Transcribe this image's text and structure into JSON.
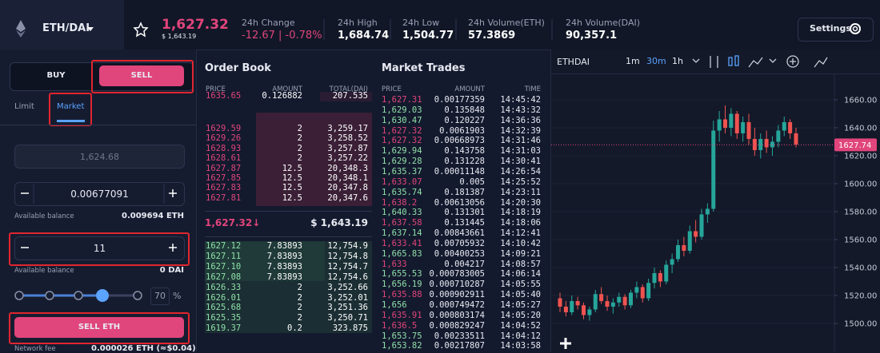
{
  "header": {
    "pair": "ETH/DAI",
    "price": "1,627.32",
    "price_usd": "$ 1,643.19",
    "stats": [
      {
        "label": "24h Change",
        "value": "-12.67 | -0.78%"
      },
      {
        "label": "24h High",
        "value": "1,684.74"
      },
      {
        "label": "24h Low",
        "value": "1,504.77"
      },
      {
        "label": "24h Volume(ETH)",
        "value": "57.3869"
      },
      {
        "label": "24h Volume(DAI)",
        "value": "90,357.1"
      }
    ],
    "settings": "Settings"
  },
  "trade_form": {
    "tabs": [
      "BUY",
      "SELL"
    ],
    "order_types": [
      "Limit",
      "Market"
    ],
    "price_placeholder": "1,624.68",
    "amount": "0.00677091",
    "balance_label_1": "Available balance",
    "balance_1": "0.009694 ETH",
    "total": "11",
    "balance_label_2": "Available balance",
    "balance_2": "0 DAI",
    "percent": "70",
    "percent_unit": "%",
    "submit": "SELL ETH",
    "fee_label": "Network fee",
    "fee": "0.000026 ETH (≈$0.04)"
  },
  "order_book": {
    "title": "Order Book",
    "columns": [
      "PRICE",
      "AMOUNT",
      "TOTAL(DAI)"
    ],
    "asks": [
      [
        "1635.65",
        "0.126882",
        "207.535"
      ],
      [
        "1629.59",
        "2",
        "3,259.17"
      ],
      [
        "1629.26",
        "2",
        "3,258.52"
      ],
      [
        "1628.93",
        "2",
        "3,257.87"
      ],
      [
        "1628.61",
        "2",
        "3,257.22"
      ],
      [
        "1627.87",
        "12.5",
        "20,348.3"
      ],
      [
        "1627.85",
        "12.5",
        "20,348.1"
      ],
      [
        "1627.83",
        "12.5",
        "20,347.8"
      ],
      [
        "1627.81",
        "12.5",
        "20,347.6"
      ]
    ],
    "mid_price": "1,627.32↓",
    "mid_usd": "$ 1,643.19",
    "bids": [
      [
        "1627.12",
        "7.83893",
        "12,754.9"
      ],
      [
        "1627.11",
        "7.83893",
        "12,754.8"
      ],
      [
        "1627.10",
        "7.83893",
        "12,754.7"
      ],
      [
        "1627.08",
        "7.83893",
        "12,754.6"
      ],
      [
        "1626.33",
        "2",
        "3,252.66"
      ],
      [
        "1626.01",
        "2",
        "3,252.01"
      ],
      [
        "1625.68",
        "2",
        "3,251.36"
      ],
      [
        "1625.35",
        "2",
        "3,250.71"
      ],
      [
        "1619.37",
        "0.2",
        "323.875"
      ]
    ]
  },
  "market_trades": {
    "title": "Market Trades",
    "columns": [
      "PRICE",
      "AMOUNT",
      "TIME"
    ],
    "rows": [
      {
        "price": "1,627.31",
        "amount": "0.00177359",
        "time": "14:45:42",
        "color": "#e0457b"
      },
      {
        "price": "1,629.03",
        "amount": "0.135848",
        "time": "14:43:32",
        "color": "#8fe0a8"
      },
      {
        "price": "1,630.47",
        "amount": "0.120227",
        "time": "14:36:36",
        "color": "#8fe0a8"
      },
      {
        "price": "1,627.32",
        "amount": "0.0061903",
        "time": "14:32:39",
        "color": "#e0457b"
      },
      {
        "price": "1,627.32",
        "amount": "0.00668973",
        "time": "14:31:46",
        "color": "#e0457b"
      },
      {
        "price": "1,629.94",
        "amount": "0.143758",
        "time": "14:31:03",
        "color": "#8fe0a8"
      },
      {
        "price": "1,629.28",
        "amount": "0.131228",
        "time": "14:30:41",
        "color": "#8fe0a8"
      },
      {
        "price": "1,635.37",
        "amount": "0.00011148",
        "time": "14:26:54",
        "color": "#8fe0a8"
      },
      {
        "price": "1,633.07",
        "amount": "0.005",
        "time": "14:25:52",
        "color": "#e0457b"
      },
      {
        "price": "1,635.74",
        "amount": "0.181387",
        "time": "14:23:11",
        "color": "#8fe0a8"
      },
      {
        "price": "1,638.2",
        "amount": "0.00613056",
        "time": "14:20:30",
        "color": "#e0457b"
      },
      {
        "price": "1,640.33",
        "amount": "0.131301",
        "time": "14:18:19",
        "color": "#8fe0a8"
      },
      {
        "price": "1,637.58",
        "amount": "0.131445",
        "time": "14:18:06",
        "color": "#e0457b"
      },
      {
        "price": "1,637.14",
        "amount": "0.00843661",
        "time": "14:12:41",
        "color": "#8fe0a8"
      },
      {
        "price": "1,633.41",
        "amount": "0.00705932",
        "time": "14:10:42",
        "color": "#e0457b"
      },
      {
        "price": "1,665.83",
        "amount": "0.00400253",
        "time": "14:09:21",
        "color": "#8fe0a8"
      },
      {
        "price": "1,633",
        "amount": "0.004217",
        "time": "14:08:57",
        "color": "#e0457b"
      },
      {
        "price": "1,655.53",
        "amount": "0.000783005",
        "time": "14:06:14",
        "color": "#8fe0a8"
      },
      {
        "price": "1,656.19",
        "amount": "0.000710287",
        "time": "14:05:55",
        "color": "#8fe0a8"
      },
      {
        "price": "1,635.88",
        "amount": "0.000902911",
        "time": "14:05:40",
        "color": "#e0457b"
      },
      {
        "price": "1,656",
        "amount": "0.000749472",
        "time": "14:05:27",
        "color": "#8fe0a8"
      },
      {
        "price": "1,635.91",
        "amount": "0.000803174",
        "time": "14:05:20",
        "color": "#e0457b"
      },
      {
        "price": "1,636.5",
        "amount": "0.000829247",
        "time": "14:04:52",
        "color": "#e0457b"
      },
      {
        "price": "1,653.75",
        "amount": "0.00233511",
        "time": "14:04:12",
        "color": "#8fe0a8"
      },
      {
        "price": "1,653.82",
        "amount": "0.00217807",
        "time": "14:03:58",
        "color": "#8fe0a8"
      }
    ]
  },
  "chart_data": {
    "type": "candlestick",
    "title": "ETHDAI",
    "intervals": [
      "1m",
      "30m",
      "1h"
    ],
    "open": [
      1518,
      1512,
      1508,
      1516,
      1513,
      1506,
      1510,
      1521,
      1516,
      1512,
      1515,
      1519,
      1513,
      1522,
      1526,
      1518,
      1529,
      1536,
      1530,
      1542,
      1546,
      1556,
      1552,
      1566,
      1562,
      1578,
      1582,
      1638,
      1646,
      1640,
      1650,
      1636,
      1644,
      1632,
      1624,
      1632,
      1626,
      1630,
      1638,
      1644,
      1636
    ],
    "high": [
      1522,
      1516,
      1520,
      1519,
      1515,
      1512,
      1524,
      1526,
      1520,
      1518,
      1522,
      1521,
      1524,
      1530,
      1528,
      1532,
      1540,
      1538,
      1545,
      1550,
      1560,
      1562,
      1570,
      1574,
      1582,
      1586,
      1645,
      1652,
      1656,
      1654,
      1652,
      1648,
      1650,
      1640,
      1636,
      1638,
      1634,
      1642,
      1648,
      1646,
      1640
    ],
    "low": [
      1508,
      1505,
      1506,
      1510,
      1503,
      1502,
      1508,
      1514,
      1509,
      1507,
      1512,
      1510,
      1511,
      1518,
      1515,
      1516,
      1525,
      1526,
      1528,
      1536,
      1544,
      1548,
      1550,
      1558,
      1560,
      1572,
      1580,
      1630,
      1636,
      1634,
      1632,
      1630,
      1628,
      1620,
      1618,
      1622,
      1620,
      1626,
      1634,
      1632,
      1626
    ],
    "close": [
      1512,
      1508,
      1516,
      1513,
      1506,
      1510,
      1521,
      1516,
      1512,
      1515,
      1519,
      1513,
      1522,
      1526,
      1518,
      1529,
      1536,
      1530,
      1542,
      1546,
      1556,
      1552,
      1566,
      1562,
      1578,
      1582,
      1638,
      1646,
      1640,
      1650,
      1636,
      1644,
      1632,
      1624,
      1632,
      1626,
      1630,
      1638,
      1644,
      1636,
      1628
    ],
    "up_color": "#26a69a",
    "down_color": "#ef5350",
    "ylim": [
      1480,
      1667.4
    ],
    "yticks": [
      {
        "value": 1660,
        "label": "1660.00"
      },
      {
        "value": 1640,
        "label": "1640.00"
      },
      {
        "value": 1620,
        "label": "1620.00"
      },
      {
        "value": 1600,
        "label": "1600.00"
      },
      {
        "value": 1580,
        "label": "1580.00"
      },
      {
        "value": 1560,
        "label": "1560.00"
      },
      {
        "value": 1540,
        "label": "1540.00"
      },
      {
        "value": 1520,
        "label": "1520.00"
      },
      {
        "value": 1500,
        "label": "1500.00"
      }
    ],
    "last_price": 1627.74,
    "last_price_color": "#e0457b"
  }
}
